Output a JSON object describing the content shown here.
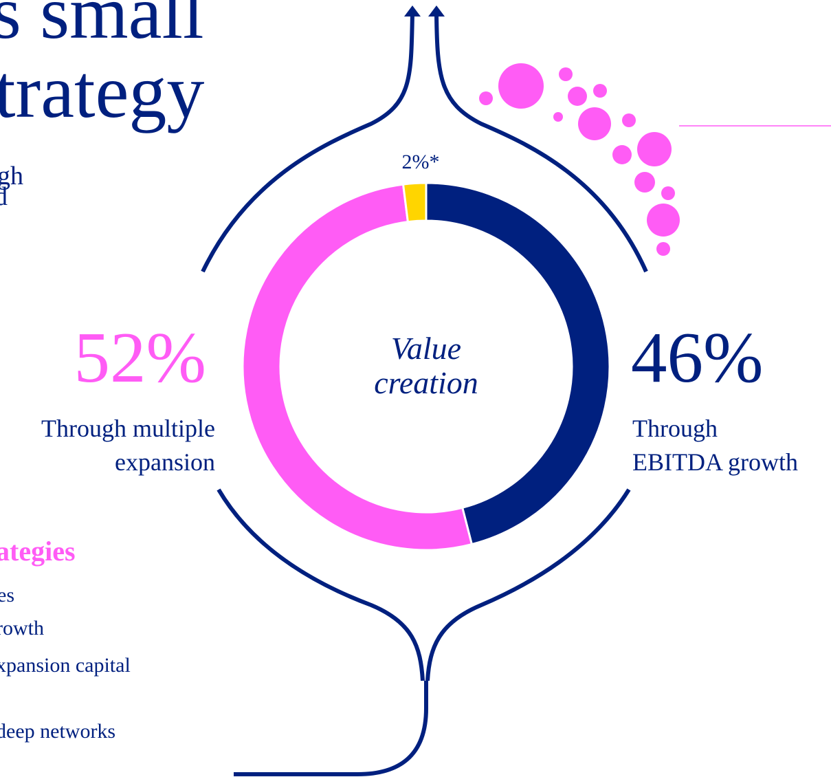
{
  "heading": [
    "s small",
    "trategy"
  ],
  "intro": [
    "gh",
    "d"
  ],
  "strategies": {
    "title": "ategies",
    "items": [
      "es",
      "rowth",
      "xpansion capital",
      "deep networks"
    ]
  },
  "chart_data": {
    "type": "donut",
    "center_text": [
      "Value",
      "creation"
    ],
    "values": [
      46,
      52,
      2
    ],
    "value_labels": [
      "46%",
      "52%",
      "2%*"
    ],
    "labels": [
      [
        "Through",
        "EBITDA growth"
      ],
      [
        "Through multiple",
        "expansion"
      ],
      null
    ],
    "colors": [
      "#00207f",
      "#ff5cf5",
      "#ffd500"
    ]
  }
}
